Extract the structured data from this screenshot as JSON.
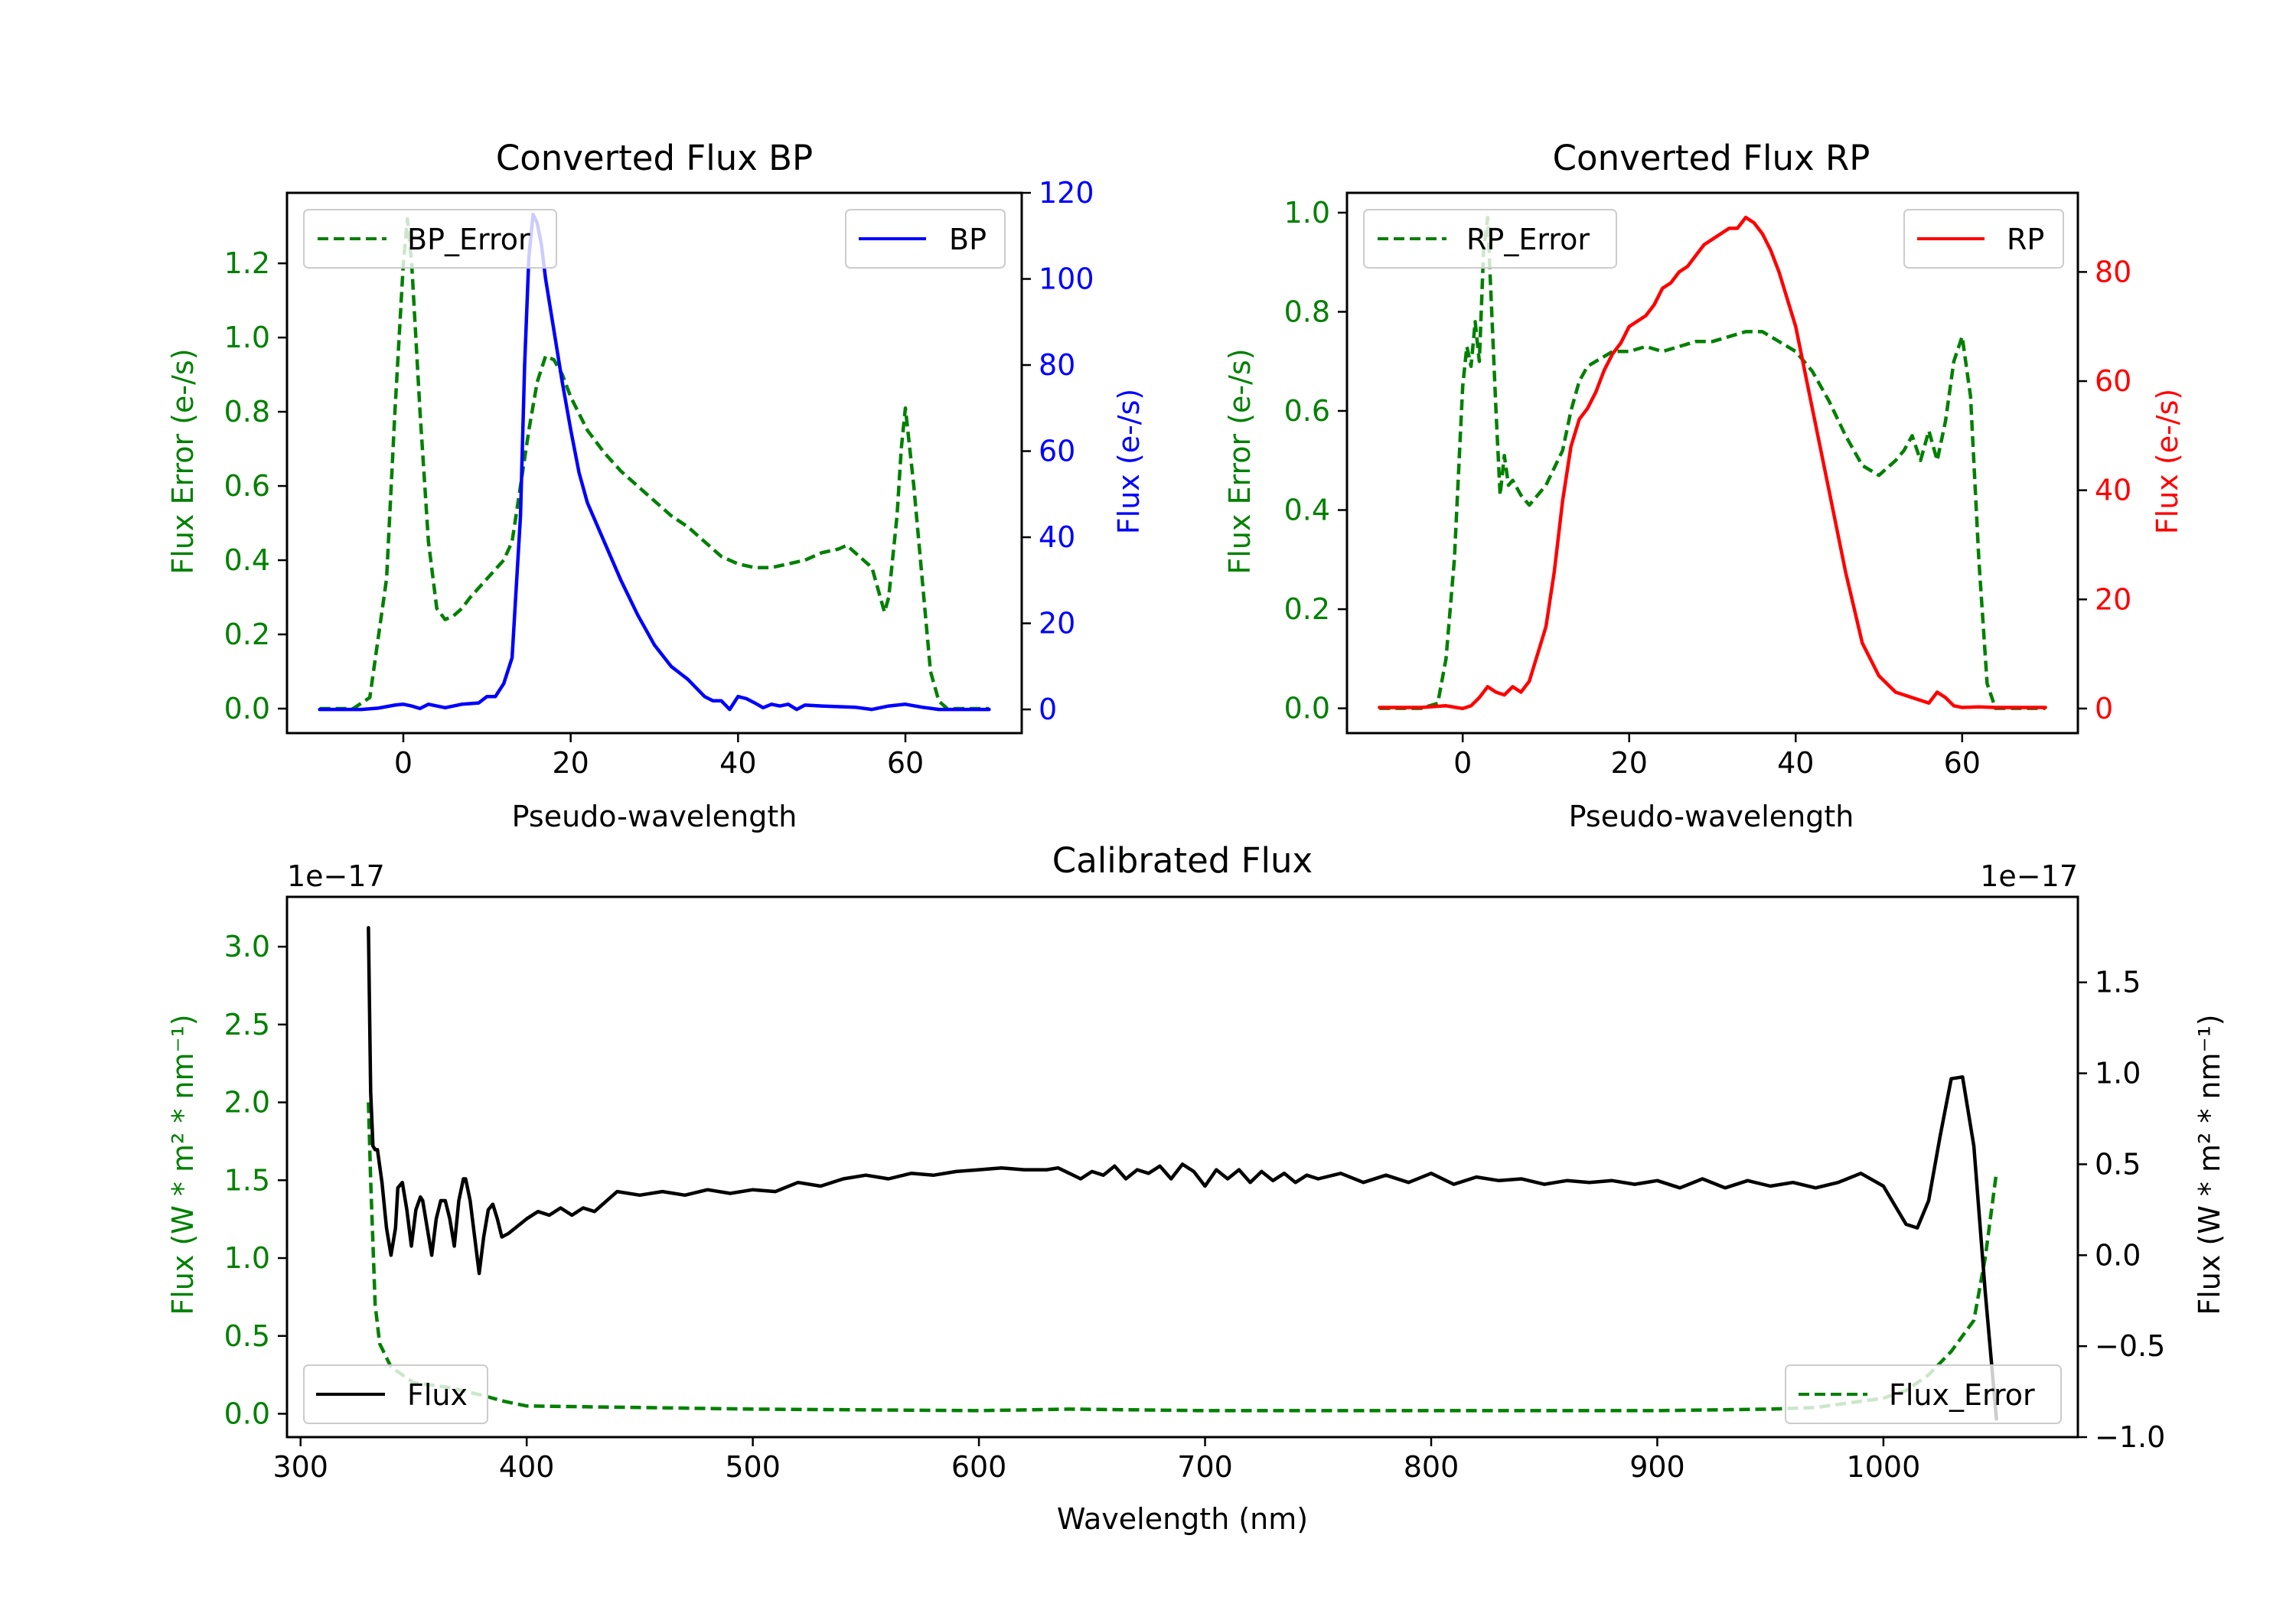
{
  "chart_data": [
    {
      "type": "line",
      "title": "Converted Flux BP",
      "xlabel": "Pseudo-wavelength",
      "xlim": [
        -13.9,
        73.9
      ],
      "xticks": [
        "0",
        "20",
        "40",
        "60"
      ],
      "xtick_values": [
        0,
        20,
        40,
        60
      ],
      "left_axis": {
        "label": "Flux Error (e-/s)",
        "color": "#008000",
        "ylim": [
          -0.066,
          1.39
        ],
        "ticks": [
          "0.0",
          "0.2",
          "0.4",
          "0.6",
          "0.8",
          "1.0",
          "1.2"
        ],
        "tick_values": [
          0.0,
          0.2,
          0.4,
          0.6,
          0.8,
          1.0,
          1.2
        ]
      },
      "right_axis": {
        "label": "Flux (e-/s)",
        "color": "#0000ff",
        "ylim": [
          -5.5,
          120
        ],
        "ticks": [
          "0",
          "20",
          "40",
          "60",
          "80",
          "100",
          "120"
        ],
        "tick_values": [
          0,
          20,
          40,
          60,
          80,
          100,
          120
        ]
      },
      "series": [
        {
          "name": "BP_Error",
          "axis": "left",
          "color": "#008000",
          "style": "dashed",
          "x": [
            -10,
            -6,
            -4,
            -2,
            -1,
            0,
            0.5,
            1,
            2,
            3,
            4,
            5,
            6,
            7,
            8,
            10,
            12,
            13,
            14,
            15,
            16,
            17,
            18,
            19,
            20,
            22,
            24,
            26,
            28,
            30,
            32,
            34,
            36,
            38,
            40,
            42,
            44,
            46,
            48,
            50,
            52,
            53,
            54,
            55,
            56,
            57,
            57.5,
            58,
            59,
            59.5,
            60,
            61,
            62,
            63,
            64,
            65,
            66,
            70
          ],
          "y": [
            0.0,
            0.0,
            0.03,
            0.35,
            0.8,
            1.2,
            1.32,
            1.2,
            0.8,
            0.45,
            0.27,
            0.24,
            0.25,
            0.27,
            0.3,
            0.35,
            0.4,
            0.45,
            0.6,
            0.75,
            0.88,
            0.95,
            0.94,
            0.9,
            0.84,
            0.75,
            0.69,
            0.64,
            0.6,
            0.56,
            0.52,
            0.49,
            0.45,
            0.41,
            0.39,
            0.38,
            0.38,
            0.39,
            0.4,
            0.42,
            0.43,
            0.44,
            0.42,
            0.4,
            0.38,
            0.3,
            0.26,
            0.3,
            0.52,
            0.7,
            0.81,
            0.6,
            0.35,
            0.1,
            0.02,
            0.0,
            0.0,
            0.0
          ]
        },
        {
          "name": "BP",
          "axis": "right",
          "color": "#0000ff",
          "style": "solid",
          "x": [
            -10,
            -5,
            -3,
            -1,
            0,
            1,
            2,
            3,
            5,
            7,
            9,
            10,
            11,
            12,
            13,
            14,
            14.5,
            15,
            15.5,
            16,
            16.5,
            17,
            18,
            19,
            20,
            21,
            22,
            24,
            26,
            28,
            30,
            32,
            34,
            36,
            37,
            38,
            39,
            40,
            41,
            42,
            43,
            44,
            45,
            46,
            47,
            48,
            50,
            54,
            56,
            58,
            60,
            62,
            64,
            70
          ],
          "y": [
            0,
            0,
            0.3,
            1,
            1.2,
            0.8,
            0.2,
            1.2,
            0.4,
            1.2,
            1.5,
            3,
            3,
            6,
            12,
            45,
            80,
            105,
            115,
            113,
            108,
            100,
            88,
            76,
            65,
            55,
            48,
            39,
            30,
            22,
            15,
            10,
            7,
            3,
            2,
            2,
            0,
            3,
            2.5,
            1.5,
            0.4,
            1.2,
            0.8,
            1.2,
            0,
            1,
            0.8,
            0.5,
            0,
            0.8,
            1.2,
            0.5,
            0,
            0
          ]
        }
      ],
      "legend": [
        {
          "label": "BP_Error",
          "position": "upper-left"
        },
        {
          "label": "BP",
          "position": "upper-right"
        }
      ]
    },
    {
      "type": "line",
      "title": "Converted Flux RP",
      "xlabel": "Pseudo-wavelength",
      "xlim": [
        -13.9,
        73.9
      ],
      "xticks": [
        "0",
        "20",
        "40",
        "60"
      ],
      "xtick_values": [
        0,
        20,
        40,
        60
      ],
      "left_axis": {
        "label": "Flux Error (e-/s)",
        "color": "#008000",
        "ylim": [
          -0.05,
          1.04
        ],
        "ticks": [
          "0.0",
          "0.2",
          "0.4",
          "0.6",
          "0.8",
          "1.0"
        ],
        "tick_values": [
          0.0,
          0.2,
          0.4,
          0.6,
          0.8,
          1.0
        ]
      },
      "right_axis": {
        "label": "Flux (e-/s)",
        "color": "#ff0000",
        "ylim": [
          -4.5,
          94.5
        ],
        "ticks": [
          "0",
          "20",
          "40",
          "60",
          "80"
        ],
        "tick_values": [
          0,
          20,
          40,
          60,
          80
        ]
      },
      "series": [
        {
          "name": "RP_Error",
          "axis": "right_none",
          "axis_left": true,
          "color": "#008000",
          "style": "dashed",
          "x": [
            -10,
            -5,
            -3,
            -2,
            -1,
            0,
            0.5,
            1,
            1.5,
            2,
            2.5,
            3,
            4,
            4.5,
            5,
            5.5,
            6,
            7,
            8,
            9,
            10,
            12,
            13,
            14,
            15,
            16,
            18,
            20,
            22,
            24,
            26,
            28,
            30,
            32,
            34,
            36,
            38,
            40,
            42,
            44,
            46,
            48,
            50,
            52,
            53,
            54,
            55,
            56,
            56.5,
            57,
            58,
            59,
            60,
            61,
            62,
            63,
            64,
            70
          ],
          "y": [
            0.0,
            0.0,
            0.01,
            0.1,
            0.3,
            0.65,
            0.73,
            0.69,
            0.78,
            0.7,
            0.92,
            0.99,
            0.6,
            0.43,
            0.51,
            0.45,
            0.46,
            0.43,
            0.41,
            0.43,
            0.45,
            0.52,
            0.6,
            0.66,
            0.69,
            0.7,
            0.72,
            0.72,
            0.73,
            0.72,
            0.73,
            0.74,
            0.74,
            0.75,
            0.76,
            0.76,
            0.74,
            0.72,
            0.68,
            0.62,
            0.55,
            0.49,
            0.47,
            0.5,
            0.52,
            0.55,
            0.5,
            0.56,
            0.53,
            0.5,
            0.58,
            0.7,
            0.75,
            0.63,
            0.3,
            0.05,
            0.0,
            0.0
          ]
        },
        {
          "name": "RP",
          "axis": "right",
          "color": "#ff0000",
          "style": "solid",
          "x": [
            -10,
            -5,
            -2,
            0,
            1,
            2,
            3,
            4,
            5,
            6,
            7,
            8,
            9,
            10,
            11,
            12,
            13,
            14,
            15,
            16,
            17,
            18,
            19,
            20,
            21,
            22,
            23,
            24,
            25,
            26,
            27,
            28,
            29,
            30,
            31,
            32,
            33,
            34,
            35,
            36,
            37,
            38,
            40,
            42,
            44,
            46,
            48,
            50,
            52,
            54,
            56,
            57,
            58,
            59,
            60,
            62,
            64,
            70
          ],
          "y": [
            0.2,
            0.2,
            0.5,
            0,
            0.5,
            2,
            4,
            3,
            2.5,
            4,
            3,
            5,
            10,
            15,
            25,
            38,
            48,
            53,
            55,
            58,
            62,
            65,
            67,
            70,
            71,
            72,
            74,
            77,
            78,
            80,
            81,
            83,
            85,
            86,
            87,
            88,
            88,
            90,
            89,
            87,
            84,
            80,
            70,
            55,
            40,
            25,
            12,
            6,
            3,
            2,
            1,
            3,
            2,
            0.5,
            0.2,
            0.3,
            0.2,
            0.2
          ]
        }
      ],
      "legend": [
        {
          "label": "RP_Error",
          "position": "upper-left"
        },
        {
          "label": "RP",
          "position": "upper-right"
        }
      ]
    },
    {
      "type": "line",
      "title": "Calibrated Flux",
      "xlabel": "Wavelength (nm)",
      "xlim": [
        294,
        1086
      ],
      "xticks": [
        "300",
        "400",
        "500",
        "600",
        "700",
        "800",
        "900",
        "1000"
      ],
      "xtick_values": [
        300,
        400,
        500,
        600,
        700,
        800,
        900,
        1000
      ],
      "left_axis": {
        "label": "Flux (W * m² * nm⁻¹)",
        "color": "#008000",
        "offset_text": "1e−17",
        "ylim": [
          -0.15,
          3.32
        ],
        "ticks": [
          "0.0",
          "0.5",
          "1.0",
          "1.5",
          "2.0",
          "2.5",
          "3.0"
        ],
        "tick_values": [
          0.0,
          0.5,
          1.0,
          1.5,
          2.0,
          2.5,
          3.0
        ]
      },
      "right_axis": {
        "label": "Flux (W * m² * nm⁻¹)",
        "color": "#000000",
        "offset_text": "1e−17",
        "ylim": [
          -1.0,
          1.97
        ],
        "ticks": [
          "−1.0",
          "−0.5",
          "0.0",
          "0.5",
          "1.0",
          "1.5"
        ],
        "tick_values": [
          -1.0,
          -0.5,
          0.0,
          0.5,
          1.0,
          1.5
        ]
      },
      "series": [
        {
          "name": "Flux_Error",
          "axis": "left",
          "color": "#008000",
          "style": "dashed",
          "x": [
            330,
            331,
            333,
            335,
            340,
            350,
            365,
            380,
            390,
            400,
            450,
            500,
            600,
            640,
            700,
            800,
            900,
            950,
            970,
            990,
            1000,
            1010,
            1020,
            1030,
            1040,
            1045,
            1050
          ],
          "y": [
            2.0,
            1.5,
            0.7,
            0.45,
            0.3,
            0.2,
            0.17,
            0.12,
            0.08,
            0.05,
            0.04,
            0.03,
            0.02,
            0.03,
            0.02,
            0.02,
            0.02,
            0.03,
            0.04,
            0.08,
            0.1,
            0.15,
            0.25,
            0.4,
            0.6,
            1.0,
            1.55
          ]
        },
        {
          "name": "Flux",
          "axis": "right",
          "color": "#000000",
          "style": "solid",
          "x": [
            330,
            331,
            332,
            333,
            334,
            336,
            338,
            340,
            342,
            343,
            345,
            347,
            349,
            351,
            353,
            354,
            356,
            358,
            360,
            362,
            364,
            366,
            368,
            370,
            372,
            373,
            375,
            377,
            379,
            381,
            383,
            385,
            387,
            389,
            392,
            395,
            400,
            405,
            410,
            415,
            420,
            425,
            430,
            440,
            450,
            460,
            470,
            480,
            490,
            500,
            510,
            520,
            530,
            540,
            550,
            560,
            570,
            580,
            590,
            600,
            610,
            620,
            630,
            635,
            640,
            645,
            650,
            655,
            660,
            665,
            670,
            675,
            680,
            685,
            690,
            695,
            700,
            705,
            710,
            715,
            720,
            725,
            730,
            735,
            740,
            745,
            750,
            760,
            770,
            780,
            790,
            800,
            810,
            820,
            830,
            840,
            850,
            860,
            870,
            880,
            890,
            900,
            910,
            920,
            930,
            940,
            950,
            960,
            970,
            980,
            990,
            1000,
            1010,
            1015,
            1020,
            1025,
            1030,
            1035,
            1040,
            1045,
            1050
          ],
          "y": [
            1.8,
            0.9,
            0.6,
            0.58,
            0.58,
            0.4,
            0.15,
            0.0,
            0.15,
            0.37,
            0.4,
            0.25,
            0.05,
            0.25,
            0.32,
            0.3,
            0.15,
            0.0,
            0.2,
            0.3,
            0.3,
            0.2,
            0.05,
            0.3,
            0.42,
            0.42,
            0.3,
            0.1,
            -0.1,
            0.1,
            0.25,
            0.28,
            0.2,
            0.1,
            0.12,
            0.15,
            0.2,
            0.24,
            0.22,
            0.26,
            0.22,
            0.26,
            0.24,
            0.35,
            0.33,
            0.35,
            0.33,
            0.36,
            0.34,
            0.36,
            0.35,
            0.4,
            0.38,
            0.42,
            0.44,
            0.42,
            0.45,
            0.44,
            0.46,
            0.47,
            0.48,
            0.47,
            0.47,
            0.48,
            0.45,
            0.42,
            0.46,
            0.44,
            0.49,
            0.42,
            0.47,
            0.45,
            0.49,
            0.42,
            0.5,
            0.46,
            0.38,
            0.47,
            0.42,
            0.47,
            0.4,
            0.46,
            0.41,
            0.45,
            0.4,
            0.44,
            0.42,
            0.45,
            0.4,
            0.44,
            0.4,
            0.45,
            0.39,
            0.43,
            0.41,
            0.42,
            0.39,
            0.41,
            0.4,
            0.41,
            0.39,
            0.41,
            0.37,
            0.42,
            0.37,
            0.41,
            0.38,
            0.4,
            0.37,
            0.4,
            0.45,
            0.38,
            0.17,
            0.15,
            0.3,
            0.65,
            0.97,
            0.98,
            0.6,
            -0.2,
            -0.9
          ]
        }
      ],
      "legend": [
        {
          "label": "Flux",
          "position": "lower-left"
        },
        {
          "label": "Flux_Error",
          "position": "lower-right"
        }
      ]
    }
  ]
}
